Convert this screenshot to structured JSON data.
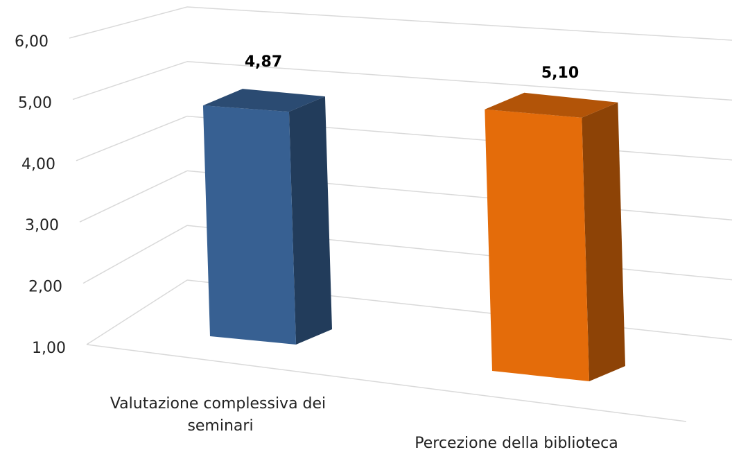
{
  "chart_data": {
    "type": "bar3d",
    "categories": [
      "Valutazione complessiva dei seminari",
      "Percezione della biblioteca"
    ],
    "values": [
      4.87,
      5.1
    ],
    "value_labels": [
      "4,87",
      "5,10"
    ],
    "colors": [
      "#376092",
      "#e46c0a"
    ],
    "ylim": [
      1,
      6
    ],
    "yticks": [
      {
        "value": 1,
        "label": "1,00"
      },
      {
        "value": 2,
        "label": "2,00"
      },
      {
        "value": 3,
        "label": "3,00"
      },
      {
        "value": 4,
        "label": "4,00"
      },
      {
        "value": 5,
        "label": "5,00"
      },
      {
        "value": 6,
        "label": "6,00"
      }
    ],
    "grid": true
  }
}
